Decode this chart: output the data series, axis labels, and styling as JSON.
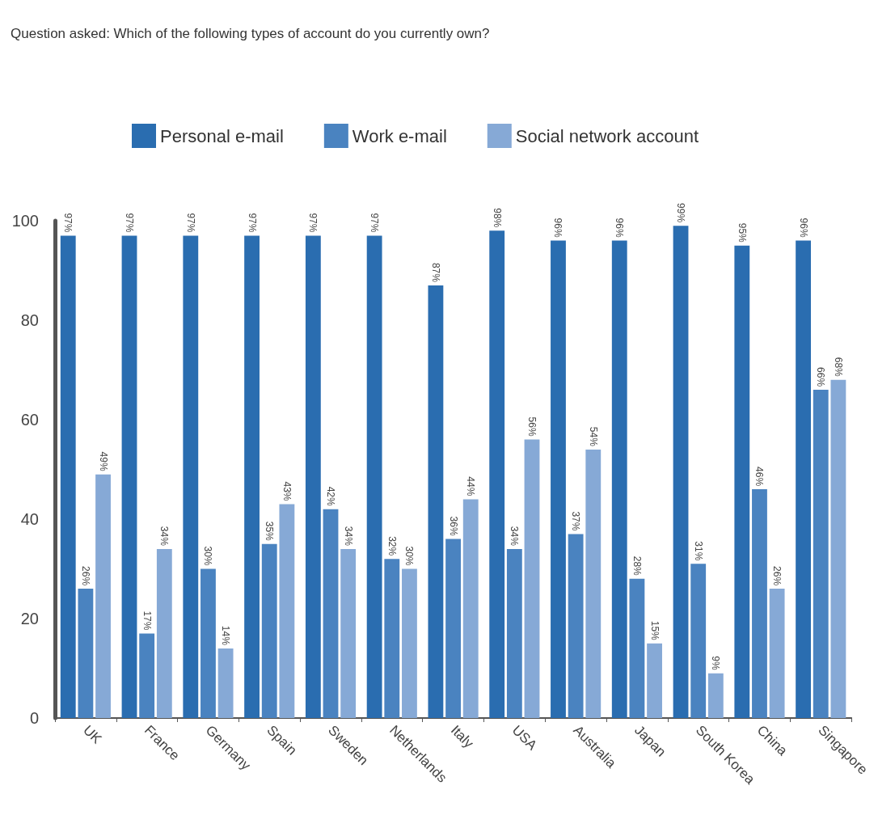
{
  "chart_data": {
    "type": "bar",
    "title": "Question asked: Which of the following types of account do you currently own?",
    "categories": [
      "UK",
      "France",
      "Germany",
      "Spain",
      "Sweden",
      "Netherlands",
      "Italy",
      "USA",
      "Australia",
      "Japan",
      "South Korea",
      "China",
      "Singapore"
    ],
    "series": [
      {
        "name": "Personal e-mail",
        "color": "#2a6db0",
        "values": [
          97,
          97,
          97,
          97,
          97,
          97,
          87,
          98,
          96,
          96,
          99,
          95,
          96
        ],
        "value_labels": [
          "97%",
          "97%",
          "97%",
          "97%",
          "97%",
          "97%",
          "87%",
          "98%",
          "96%",
          "96%",
          "99%",
          "95%",
          "96%"
        ]
      },
      {
        "name": "Work e-mail",
        "color": "#4a83c0",
        "values": [
          26,
          17,
          30,
          35,
          42,
          32,
          36,
          34,
          37,
          28,
          31,
          46,
          66
        ],
        "value_labels": [
          "26%",
          "17%",
          "30%",
          "35%",
          "42%",
          "32%",
          "36%",
          "34%",
          "37%",
          "28%",
          "31%",
          "46%",
          "66%"
        ]
      },
      {
        "name": "Social network account",
        "color": "#86a9d6",
        "values": [
          49,
          34,
          14,
          43,
          34,
          30,
          44,
          56,
          54,
          15,
          9,
          26,
          68
        ],
        "value_labels": [
          "49%",
          "34%",
          "14%",
          "43%",
          "34%",
          "30%",
          "44%",
          "56%",
          "54%",
          "15%",
          "9%",
          "26%",
          "68%"
        ]
      }
    ],
    "ylim": [
      0,
      100
    ],
    "yticks": [
      0,
      20,
      40,
      60,
      80,
      100
    ],
    "grid": false,
    "legend": "top"
  }
}
